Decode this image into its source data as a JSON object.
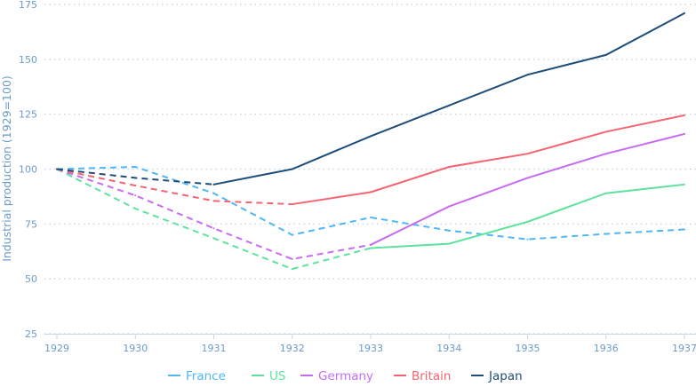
{
  "chart_data": {
    "type": "line",
    "title": "",
    "xlabel": "",
    "ylabel": "Industrial production (1929=100)",
    "x": [
      1929,
      1930,
      1931,
      1932,
      1933,
      1934,
      1935,
      1936,
      1937
    ],
    "ylim": [
      25,
      175
    ],
    "yticks": [
      25,
      50,
      75,
      100,
      125,
      150,
      175
    ],
    "grid": true,
    "legend_position": "bottom",
    "series": [
      {
        "name": "France",
        "color": "#4fb6f7",
        "values": [
          100,
          101,
          89,
          70,
          78,
          72,
          68,
          70.5,
          72.5
        ],
        "dashed_until": 1937
      },
      {
        "name": "US",
        "color": "#5ee39d",
        "values": [
          100,
          82,
          68.5,
          54.5,
          64,
          66,
          76,
          89,
          93
        ],
        "dashed_until": 1933
      },
      {
        "name": "Germany",
        "color": "#c76cf2",
        "values": [
          100,
          88,
          73,
          59,
          65.5,
          83,
          96,
          107,
          116
        ],
        "dashed_until": 1933
      },
      {
        "name": "Britain",
        "color": "#f5646f",
        "values": [
          100,
          92.5,
          85.5,
          84,
          89.5,
          101,
          107,
          117,
          124.5
        ],
        "dashed_until": 1932
      },
      {
        "name": "Japan",
        "color": "#1e4d78",
        "values": [
          100,
          96,
          93,
          100,
          115,
          129,
          143,
          152,
          171
        ],
        "dashed_until": 1931
      }
    ]
  }
}
